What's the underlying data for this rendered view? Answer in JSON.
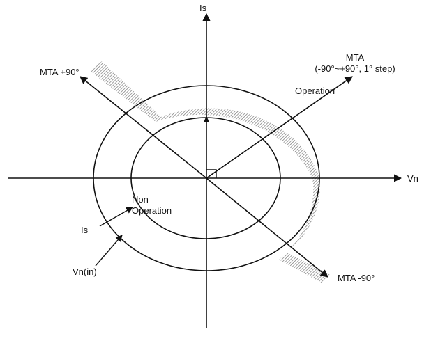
{
  "axes": {
    "vertical_label": "Is",
    "horizontal_label": "Vn"
  },
  "lines": {
    "mta_plus_label": "MTA +90°",
    "mta_minus_label": "MTA -90°",
    "mta_title": "MTA",
    "mta_range": "(-90°~+90°, 1° step)"
  },
  "regions": {
    "operation_label": "Operation",
    "non_operation_line1": "Non",
    "non_operation_line2": "Operation"
  },
  "callouts": {
    "is_label": "Is",
    "vn_in_label": "Vn(in)"
  },
  "colors": {
    "stroke": "#111111",
    "hatch": "#777777"
  }
}
